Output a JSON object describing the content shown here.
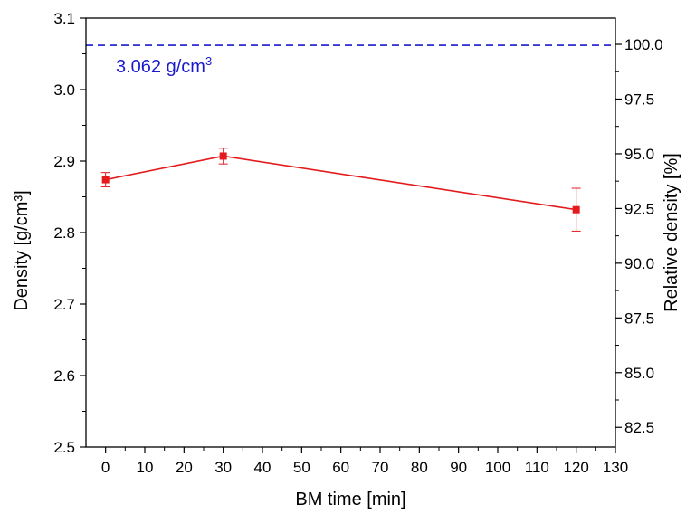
{
  "chart_data": {
    "type": "line",
    "x_label": "BM time [min]",
    "y_label_left": "Density [g/cm³]",
    "y_label_right": "Relative density [%]",
    "xlim": [
      -5,
      130
    ],
    "ylim": [
      2.5,
      3.1
    ],
    "y2lim": [
      81.6,
      101.2
    ],
    "x_ticks": [
      0,
      10,
      20,
      30,
      40,
      50,
      60,
      70,
      80,
      90,
      100,
      110,
      120,
      130
    ],
    "y_ticks": [
      2.5,
      2.6,
      2.7,
      2.8,
      2.9,
      3.0,
      3.1
    ],
    "y_tick_labels": [
      "2.5",
      "2.6",
      "2.7",
      "2.8",
      "2.9",
      "3.0",
      "3.1"
    ],
    "y2_ticks": [
      82.5,
      85.0,
      87.5,
      90.0,
      92.5,
      95.0,
      97.5,
      100.0
    ],
    "y2_tick_labels": [
      "82.5",
      "85.0",
      "87.5",
      "90.0",
      "92.5",
      "95.0",
      "97.5",
      "100.0"
    ],
    "series": [
      {
        "color": "#e41a1c",
        "marker": "square",
        "x": [
          0,
          30,
          120
        ],
        "y": [
          2.874,
          2.907,
          2.832
        ],
        "error": [
          0.01,
          0.011,
          0.03
        ]
      }
    ],
    "reference_line": {
      "y": 3.062,
      "style": "dashed",
      "color": "#1a1acc",
      "label_main": "3.062 g/cm",
      "label_sup": "3"
    },
    "grid": false,
    "legend": "none"
  }
}
